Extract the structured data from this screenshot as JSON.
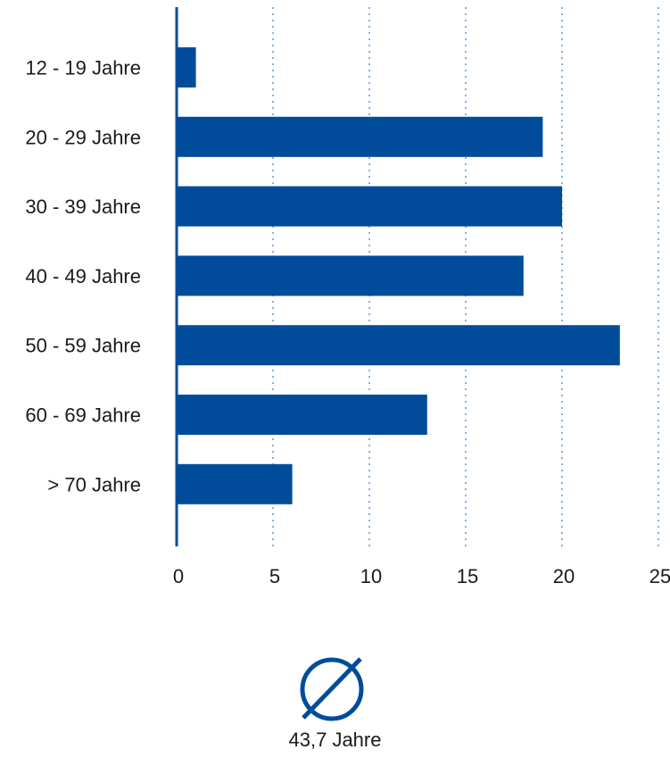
{
  "chart_data": {
    "type": "bar",
    "orientation": "horizontal",
    "categories": [
      "12 - 19 Jahre",
      "20 - 29 Jahre",
      "30 - 39 Jahre",
      "40 - 49 Jahre",
      "50 - 59 Jahre",
      "60 - 69 Jahre",
      "> 70 Jahre"
    ],
    "values": [
      1,
      19,
      20,
      18,
      23,
      13,
      6
    ],
    "xlim": [
      0,
      25
    ],
    "xticks": [
      "0",
      "5",
      "10",
      "15",
      "20",
      "25"
    ],
    "grid": "vertical dotted",
    "legend": "none",
    "bar_color": "#004c9b",
    "grid_color": "#7fb3e0"
  },
  "average": {
    "icon": "diameter-icon",
    "value": "43,7 Jahre"
  }
}
